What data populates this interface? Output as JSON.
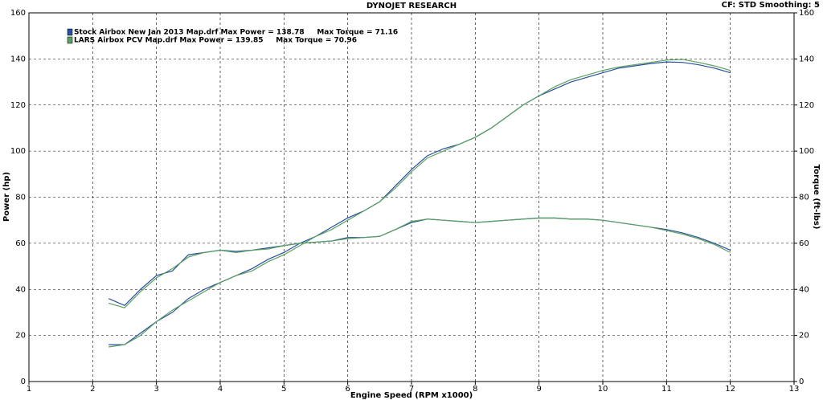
{
  "chart_data": {
    "type": "line",
    "title": "DYNOJET RESEARCH",
    "subtitle": "CF: STD  Smoothing: 5",
    "x_label": "Engine Speed (RPM x1000)",
    "y_label": "Power (hp)",
    "y2_label": "Torque (ft-lbs)",
    "x": [
      2.25,
      2.5,
      2.75,
      3.0,
      3.25,
      3.5,
      3.75,
      4.0,
      4.25,
      4.5,
      4.75,
      5.0,
      5.25,
      5.5,
      5.75,
      6.0,
      6.25,
      6.5,
      6.75,
      7.0,
      7.25,
      7.5,
      7.75,
      8.0,
      8.25,
      8.5,
      8.75,
      9.0,
      9.25,
      9.5,
      9.75,
      10.0,
      10.25,
      10.5,
      10.75,
      11.0,
      11.25,
      11.5,
      11.75,
      12.0
    ],
    "series": [
      {
        "name": "Stock Airbox New Jan 2013 Map.drf Max Power = 138.78     Max Torque = 71.16",
        "color": "#2a4f9e",
        "values": [
          16,
          16,
          21,
          26,
          30,
          36,
          40,
          43,
          46,
          49,
          53,
          56,
          60,
          63,
          67,
          71,
          74,
          78,
          85,
          92,
          98,
          101,
          103,
          106,
          110,
          115,
          120,
          124,
          127,
          130,
          132,
          134,
          136,
          137,
          138,
          138.7,
          138.5,
          137.5,
          136,
          134
        ]
      },
      {
        "name": "LARS Airbox PCV Map.drf Max Power = 139.85     Max Torque = 70.96",
        "color": "#5aa060",
        "values": [
          15,
          16,
          20,
          26,
          31,
          35,
          39,
          43,
          46,
          48,
          52,
          55,
          59,
          63,
          66,
          70,
          74,
          78,
          84,
          91,
          97,
          100,
          103,
          106,
          110,
          115,
          120,
          124,
          128,
          131,
          133,
          135,
          136.5,
          137.5,
          138.5,
          139.5,
          139.8,
          138.5,
          137,
          135
        ]
      },
      {
        "axis": "y2",
        "color": "#2a4f9e",
        "values": [
          36,
          33,
          40,
          46,
          48,
          55,
          56,
          57,
          56.5,
          57,
          58,
          59,
          60,
          60.5,
          61,
          62.5,
          62.5,
          63,
          66,
          69,
          70.5,
          70,
          69.5,
          69,
          69.5,
          70,
          70.5,
          71,
          71,
          70.5,
          70.5,
          70,
          69,
          68,
          67,
          66,
          64.5,
          62.5,
          60,
          57
        ]
      },
      {
        "axis": "y2",
        "color": "#5aa060",
        "values": [
          34,
          32,
          39,
          45,
          49,
          54,
          56,
          57,
          56,
          57,
          57.5,
          59,
          60,
          60.5,
          61,
          62,
          62.5,
          63,
          66,
          69.5,
          70.5,
          70,
          69.5,
          69,
          69.5,
          70,
          70.5,
          70.9,
          70.9,
          70.5,
          70.5,
          70,
          69,
          68,
          67,
          65.5,
          64,
          62,
          59.5,
          56
        ]
      }
    ],
    "xlim": [
      1,
      13
    ],
    "xticks": [
      1,
      2,
      3,
      4,
      5,
      6,
      7,
      8,
      9,
      10,
      11,
      12,
      13
    ],
    "ylim": [
      0,
      160
    ],
    "yticks": [
      0,
      20,
      40,
      60,
      80,
      100,
      120,
      140,
      160
    ],
    "y2lim": [
      0,
      160
    ],
    "y2ticks": [
      0,
      20,
      40,
      60,
      80,
      100,
      120,
      140,
      160
    ],
    "grid": true,
    "legend": "upper-left"
  }
}
